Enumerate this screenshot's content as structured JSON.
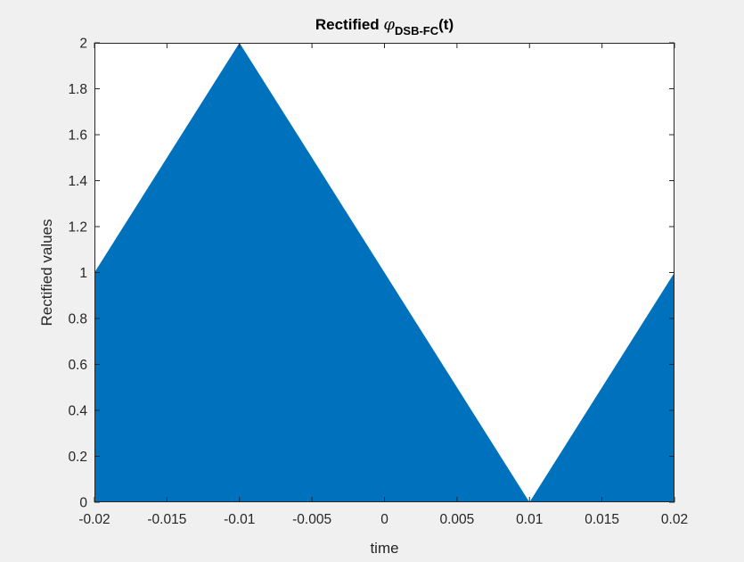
{
  "chart_data": {
    "type": "area",
    "title": {
      "prefix": "Rectified ",
      "symbol": "φ",
      "subscript": "DSB-FC",
      "suffix": "(t)"
    },
    "xlabel": "time",
    "ylabel": "Rectified values",
    "xlim": [
      -0.02,
      0.02
    ],
    "ylim": [
      0,
      2
    ],
    "x_ticks": [
      -0.02,
      -0.015,
      -0.01,
      -0.005,
      0,
      0.005,
      0.01,
      0.015,
      0.02
    ],
    "x_tick_labels": [
      "-0.02",
      "-0.015",
      "-0.01",
      "-0.005",
      "0",
      "0.005",
      "0.01",
      "0.015",
      "0.02"
    ],
    "y_ticks": [
      0,
      0.2,
      0.4,
      0.6,
      0.8,
      1,
      1.2,
      1.4,
      1.6,
      1.8,
      2
    ],
    "y_tick_labels": [
      "0",
      "0.2",
      "0.4",
      "0.6",
      "0.8",
      "1",
      "1.2",
      "1.4",
      "1.6",
      "1.8",
      "2"
    ],
    "grid": false,
    "series": [
      {
        "x": [
          -0.02,
          -0.01,
          0.01,
          0.02
        ],
        "y": [
          1,
          2,
          0,
          1
        ]
      }
    ],
    "colors": {
      "fill": "#0072BD",
      "axes_background": "#ffffff",
      "figure_background": "#f0f0f0",
      "axis_color": "#262626"
    }
  }
}
